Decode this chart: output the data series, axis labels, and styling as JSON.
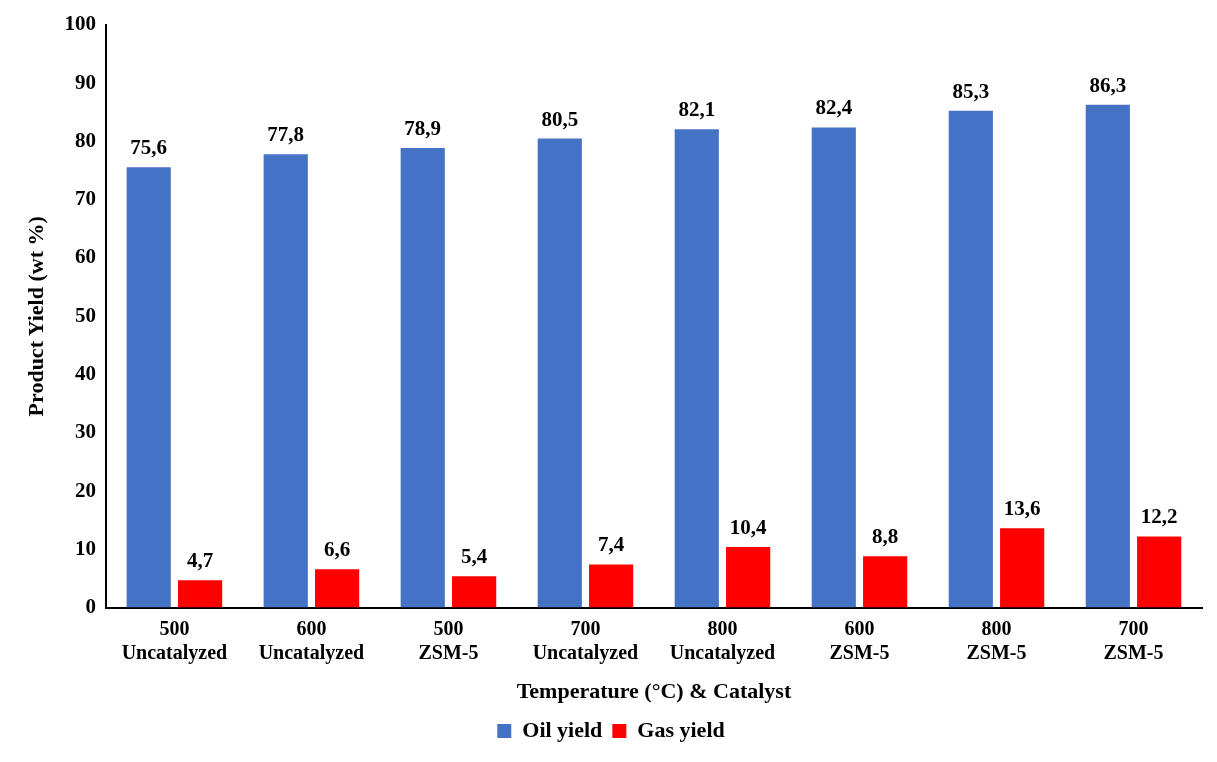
{
  "chart_data": {
    "type": "bar",
    "xlabel": "Temperature (°C) & Catalyst",
    "ylabel": "Product Yield (wt %)",
    "categories": [
      "500\nUncatalyzed",
      "600\nUncatalyzed",
      "500\nZSM-5",
      "700\nUncatalyzed",
      "800\nUncatalyzed",
      "600\nZSM-5",
      "800\nZSM-5",
      "700\nZSM-5"
    ],
    "series": [
      {
        "name": "Oil yield",
        "color": "#4472c4",
        "values": [
          75.6,
          77.8,
          78.9,
          80.5,
          82.1,
          82.4,
          85.3,
          86.3
        ],
        "value_labels": [
          "75,6",
          "77,8",
          "78,9",
          "80,5",
          "82,1",
          "82,4",
          "85,3",
          "86,3"
        ]
      },
      {
        "name": "Gas yield",
        "color": "#ff0000",
        "values": [
          4.7,
          6.6,
          5.4,
          7.4,
          10.4,
          8.8,
          13.6,
          12.2
        ],
        "value_labels": [
          "4,7",
          "6,6",
          "5,4",
          "7,4",
          "10,4",
          "8,8",
          "13,6",
          "12,2"
        ]
      }
    ],
    "ylim": [
      0,
      100
    ],
    "yticks": [
      0,
      10,
      20,
      30,
      40,
      50,
      60,
      70,
      80,
      90,
      100
    ],
    "grid": false,
    "legend": "bottom"
  }
}
